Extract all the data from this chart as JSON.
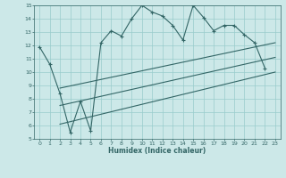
{
  "xlabel": "Humidex (Indice chaleur)",
  "ylabel": "",
  "bg_color": "#cce8e8",
  "grid_color": "#99cccc",
  "line_color": "#336666",
  "xlim": [
    -0.5,
    23.5
  ],
  "ylim": [
    5,
    15
  ],
  "xticks": [
    0,
    1,
    2,
    3,
    4,
    5,
    6,
    7,
    8,
    9,
    10,
    11,
    12,
    13,
    14,
    15,
    16,
    17,
    18,
    19,
    20,
    21,
    22,
    23
  ],
  "yticks": [
    5,
    6,
    7,
    8,
    9,
    10,
    11,
    12,
    13,
    14,
    15
  ],
  "main_line_x": [
    0,
    1,
    2,
    3,
    4,
    5,
    6,
    7,
    8,
    9,
    10,
    11,
    12,
    13,
    14,
    15,
    16,
    17,
    18,
    19,
    20,
    21,
    22
  ],
  "main_line_y": [
    11.9,
    10.6,
    8.4,
    5.5,
    7.8,
    5.6,
    12.2,
    13.1,
    12.7,
    14.0,
    15.0,
    14.5,
    14.2,
    13.5,
    12.4,
    15.0,
    14.1,
    13.1,
    13.5,
    13.5,
    12.8,
    12.2,
    10.3
  ],
  "upper_line_x": [
    2,
    23
  ],
  "upper_line_y": [
    8.8,
    12.2
  ],
  "lower_line_x": [
    2,
    23
  ],
  "lower_line_y": [
    6.1,
    10.0
  ],
  "mid_line_x": [
    2,
    23
  ],
  "mid_line_y": [
    7.5,
    11.1
  ]
}
